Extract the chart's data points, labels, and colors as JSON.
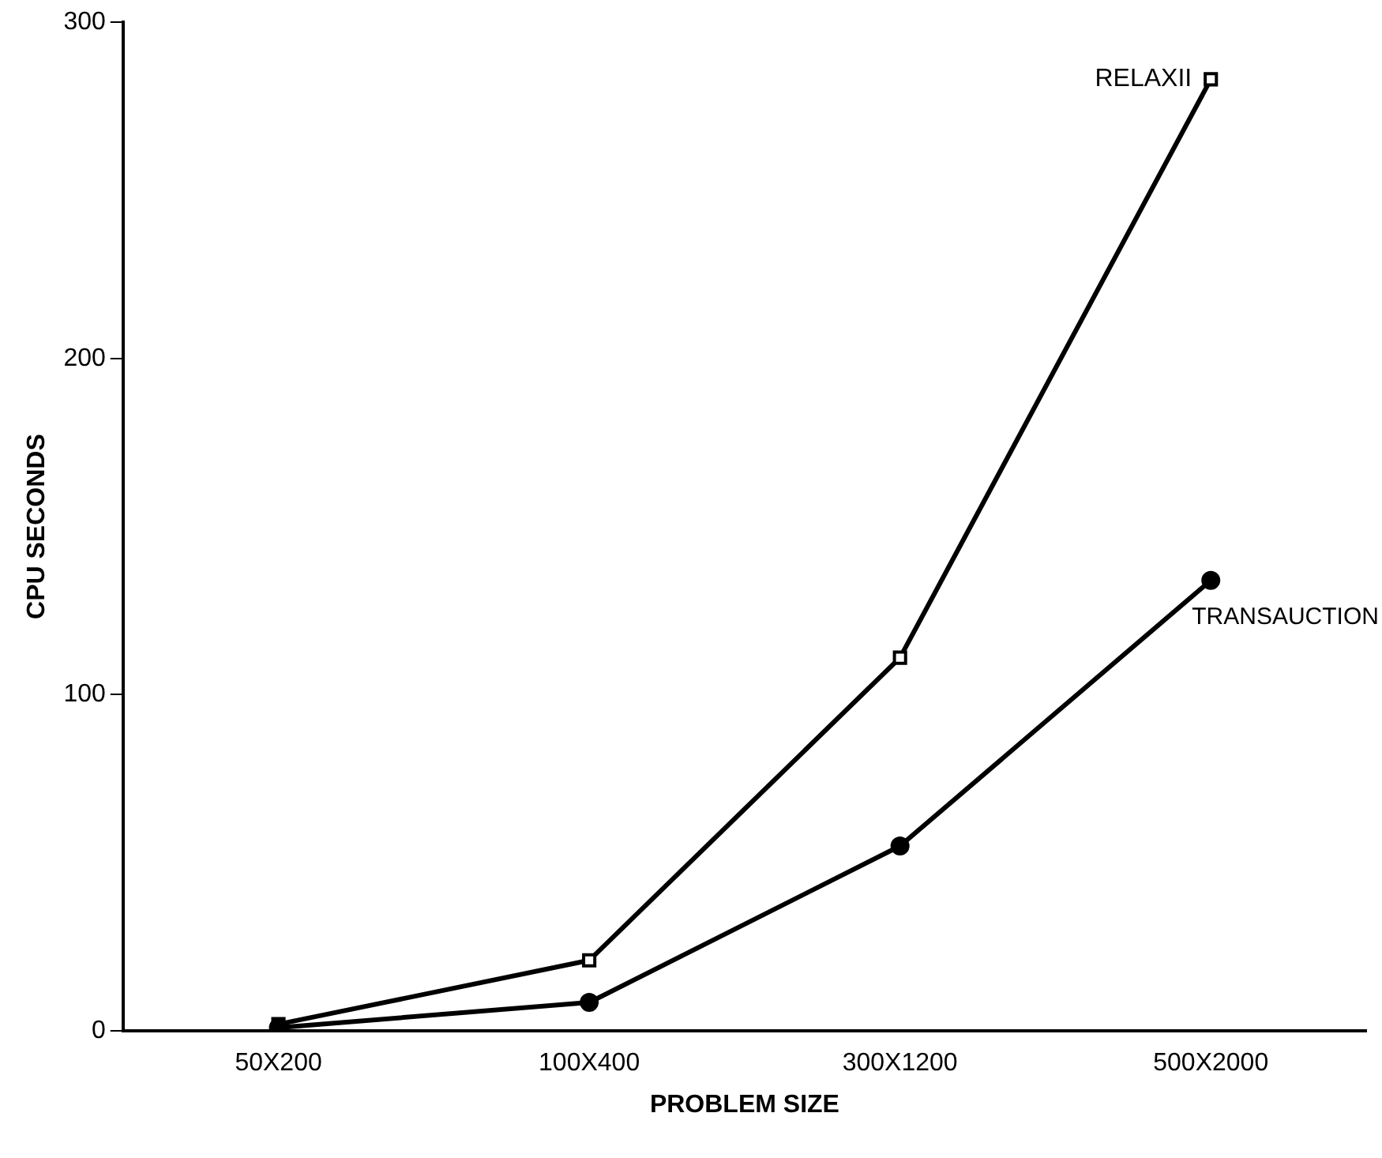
{
  "chart_data": {
    "type": "line",
    "xlabel": "PROBLEM SIZE",
    "ylabel": "CPU SECONDS",
    "categories": [
      "50X200",
      "100X400",
      "300X1200",
      "500X2000"
    ],
    "series": [
      {
        "name": "RELAXII",
        "color": "#000000",
        "marker": "square",
        "values": [
          2,
          21,
          111,
          283
        ]
      },
      {
        "name": "TRANSAUCTION",
        "color": "#000000",
        "marker": "circle",
        "values": [
          1,
          8.5,
          55,
          134
        ]
      }
    ],
    "ylim": [
      0,
      300
    ],
    "yticks": [
      0,
      100,
      200,
      300
    ],
    "grid": false,
    "legend": false,
    "line_style": "solid"
  }
}
